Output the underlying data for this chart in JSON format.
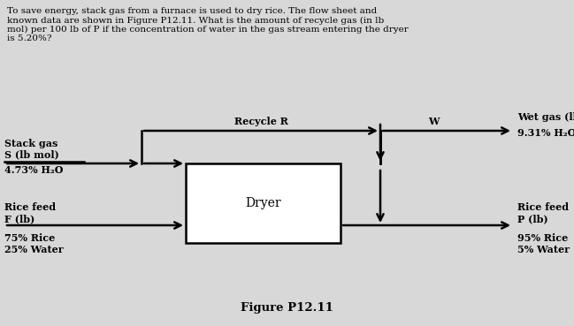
{
  "title_text": "To save energy, stack gas from a furnace is used to dry rice. The flow sheet and\nknown data are shown in Figure P12.11. What is the amount of recycle gas (in lb\nmol) per 100 lb of P if the concentration of water in the gas stream entering the dryer\nis 5.20%?",
  "figure_label": "Figure P12.11",
  "dryer_label": "Dryer",
  "bg_color": "#d8d8d8",
  "box_color": "#ffffff",
  "text_color": "#000000",
  "arrow_color": "#000000",
  "line_width": 1.8,
  "title_fontsize": 7.5,
  "label_fontsize": 8.0
}
